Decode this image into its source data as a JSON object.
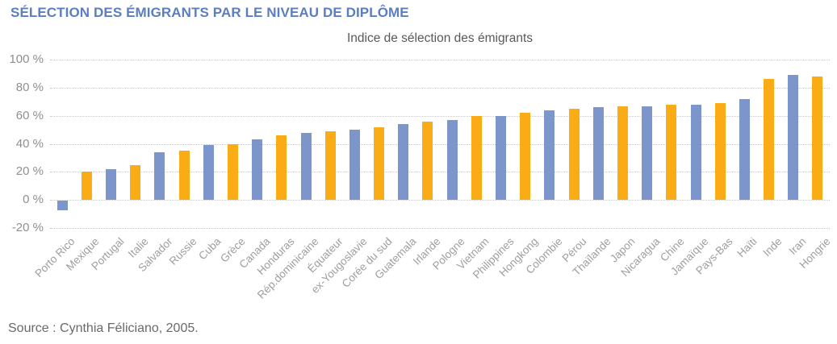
{
  "header": {
    "title": "SÉLECTION DES ÉMIGRANTS PAR LE NIVEAU DE DIPLÔME"
  },
  "footer": {
    "source": "Source : Cynthia Féliciano, 2005."
  },
  "chart_data": {
    "type": "bar",
    "title": "Indice de sélection des émigrants",
    "categories": [
      "Porto Rico",
      "Mexique",
      "Portugal",
      "Italie",
      "Salvador",
      "Russie",
      "Cuba",
      "Grèce",
      "Canada",
      "Honduras",
      "Rép.dominicaine",
      "Équateur",
      "ex-Yougoslavie",
      "Corée du sud",
      "Guatemala",
      "Irlande",
      "Pologne",
      "Vietnam",
      "Philippines",
      "Hongkong",
      "Colombie",
      "Pérou",
      "Thaïlande",
      "Japon",
      "Nicaragua",
      "Chine",
      "Jamaïque",
      "Pays-Bas",
      "Haïti",
      "Inde",
      "Iran",
      "Hongrie"
    ],
    "values": [
      -7,
      20,
      22,
      25,
      34,
      35,
      39,
      40,
      43,
      46,
      48,
      49,
      50,
      52,
      54,
      56,
      57,
      60,
      60,
      62,
      64,
      65,
      66,
      67,
      67,
      68,
      68,
      69,
      72,
      86,
      89,
      88
    ],
    "xlabel": "",
    "ylabel": "",
    "ylim": [
      -20,
      100
    ],
    "yticks": [
      100,
      80,
      60,
      40,
      20,
      0,
      -20
    ],
    "ytick_suffix": " %",
    "grid": "horizontal-dotted",
    "legend": "none",
    "bar_colors_alternating": [
      "#7c95ca",
      "#f9ac15"
    ],
    "colors": {
      "title_blue": "#5b7ec1",
      "subtitle_gray": "#595959",
      "ytick_gray": "#8f8f8f",
      "category_gray": "#9e9e9e",
      "gridline_gray": "#c9c9c9",
      "source_gray": "#6a6a6a"
    }
  }
}
